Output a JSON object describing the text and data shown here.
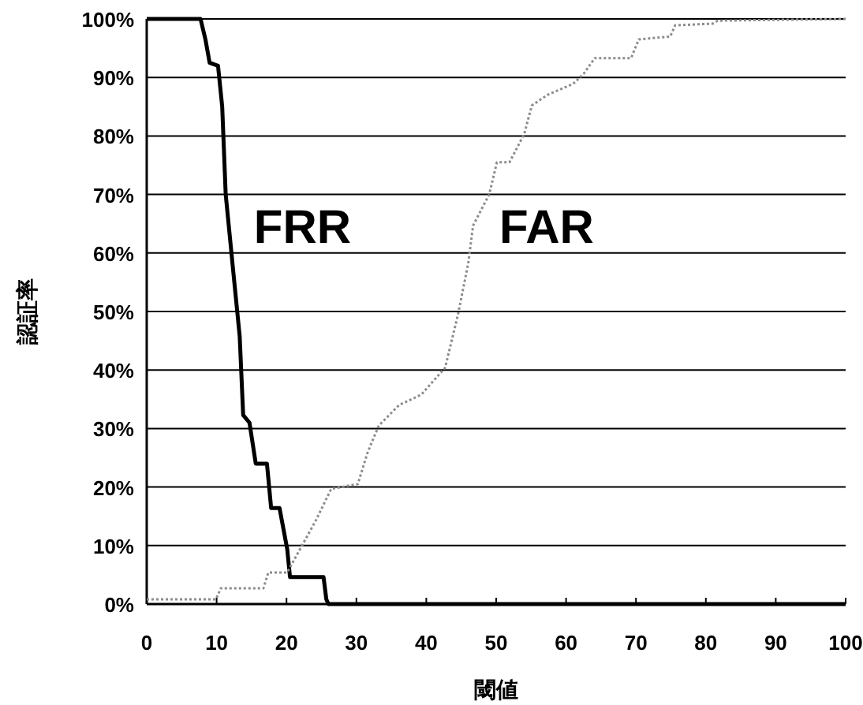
{
  "chart_data": {
    "type": "line",
    "xlabel": "閾値",
    "ylabel": "認証率",
    "xlim": [
      0,
      100
    ],
    "xticks": [
      0,
      10,
      20,
      30,
      40,
      50,
      60,
      70,
      80,
      90,
      100
    ],
    "ylim": [
      0,
      100
    ],
    "yticks": [
      {
        "value": 0,
        "label": "0%"
      },
      {
        "value": 10,
        "label": "10%"
      },
      {
        "value": 20,
        "label": "20%"
      },
      {
        "value": 30,
        "label": "30%"
      },
      {
        "value": 40,
        "label": "40%"
      },
      {
        "value": 50,
        "label": "50%"
      },
      {
        "value": 60,
        "label": "60%"
      },
      {
        "value": 70,
        "label": "70%"
      },
      {
        "value": 80,
        "label": "80%"
      },
      {
        "value": 90,
        "label": "90%"
      },
      {
        "value": 100,
        "label": "100%"
      }
    ],
    "grid": "y",
    "marker": "none",
    "series": [
      {
        "name": "FRR",
        "color": "#000000",
        "line_style": "solid",
        "x": [
          0,
          7.7,
          8.4,
          9.0,
          10.2,
          10.8,
          11.3,
          12.4,
          13.3,
          13.8,
          14.7,
          15.6,
          17.2,
          17.8,
          19.0,
          20.1,
          20.3,
          20.5,
          25.3,
          25.7,
          26,
          100
        ],
        "values": [
          100,
          100,
          96.5,
          92.5,
          92,
          85,
          70,
          56.6,
          45.8,
          32.3,
          31,
          24,
          24,
          16.4,
          16.4,
          9.4,
          7,
          4.6,
          4.6,
          0.8,
          0,
          0
        ]
      },
      {
        "name": "FAR",
        "color": "#8c8c8c",
        "line_style": "dotted",
        "x": [
          0,
          9.9,
          10.6,
          16.7,
          17.4,
          20.1,
          24.2,
          26.4,
          30.2,
          31.6,
          33.2,
          36.1,
          39.3,
          42.7,
          44.5,
          46,
          46.7,
          49,
          50.1,
          51.9,
          54,
          55.1,
          57.3,
          61,
          62.5,
          64.1,
          69.3,
          70.4,
          74.9,
          75.6,
          81,
          81.7,
          100
        ],
        "values": [
          0.8,
          0.8,
          2.7,
          2.7,
          5.4,
          5.4,
          14.3,
          19.7,
          20.5,
          25.9,
          30.5,
          34,
          35.8,
          40.4,
          49.3,
          58.2,
          64.7,
          70,
          75.5,
          75.5,
          80.3,
          85.2,
          87,
          88.9,
          90.6,
          93.3,
          93.3,
          96.5,
          97,
          98.9,
          99.2,
          99.7,
          100
        ]
      }
    ]
  }
}
